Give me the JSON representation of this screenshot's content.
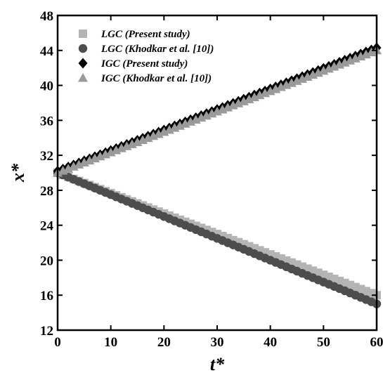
{
  "chart_data": {
    "type": "scatter",
    "title": "",
    "xlabel": "t*",
    "ylabel": "x*",
    "xlim": [
      0,
      60
    ],
    "ylim": [
      12,
      48
    ],
    "xticks": [
      "0",
      "10",
      "20",
      "30",
      "40",
      "50",
      "60"
    ],
    "yticks": [
      "12",
      "16",
      "20",
      "24",
      "28",
      "32",
      "36",
      "40",
      "44",
      "48"
    ],
    "grid": false,
    "legend_position": "top-left",
    "series": [
      {
        "name": "LGC (Present study)",
        "marker": "square",
        "color": "#b4b4b4",
        "x_start": 0,
        "x_end": 60,
        "y_start": 30.0,
        "y_end": 16.0,
        "count": 61
      },
      {
        "name": "LGC (Khodkar et al. [10])",
        "marker": "circle",
        "color": "#4d4d4d",
        "x_start": 0,
        "x_end": 60,
        "y_start": 30.0,
        "y_end": 15.0,
        "count": 61
      },
      {
        "name": "IGC (Present study)",
        "marker": "diamond",
        "color": "#000000",
        "x_start": 0,
        "x_end": 60,
        "y_start": 30.2,
        "y_end": 44.3,
        "count": 61
      },
      {
        "name": "IGC (Khodkar et al. [10])",
        "marker": "triangle",
        "color": "#9a9a9a",
        "x_start": 0,
        "x_end": 60,
        "y_start": 30.0,
        "y_end": 44.0,
        "count": 61
      }
    ]
  }
}
